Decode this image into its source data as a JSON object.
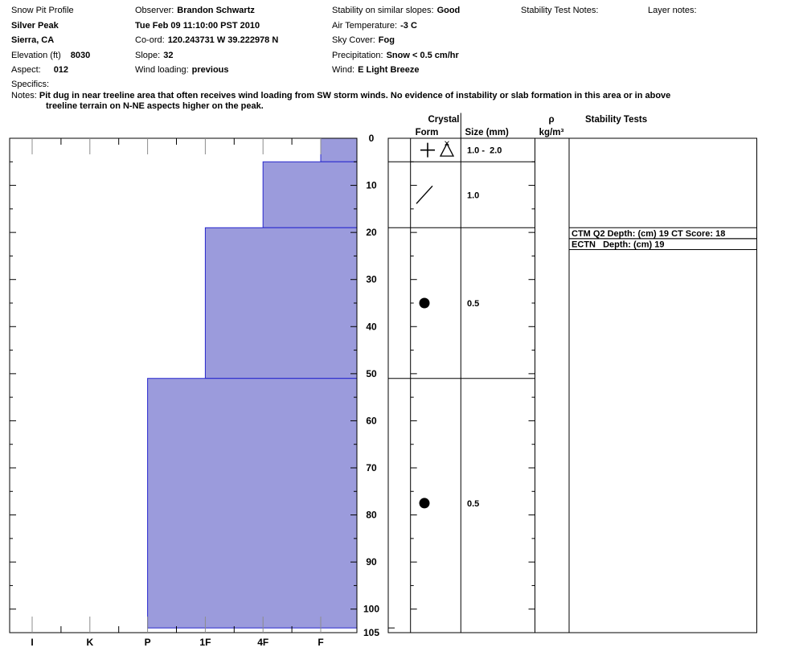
{
  "header": {
    "pit": {
      "title": "Snow Pit Profile",
      "location": "Silver Peak",
      "region": "Sierra, CA",
      "elevation_label": "Elevation (ft)",
      "elevation": "8030",
      "aspect_label": "Aspect:",
      "aspect": "012",
      "specifics_label": "Specifics:",
      "notes_label": "Notes:",
      "notes": "Pit dug in near treeline area that often receives wind loading from SW storm winds. No evidence of instability or slab formation in this area or in above treeline terrain on N-NE aspects higher on the peak."
    },
    "observation": {
      "observer_label": "Observer:",
      "observer": "Brandon Schwartz",
      "datetime": "Tue Feb 09 11:10:00 PST 2010",
      "coord_label": "Co-ord:",
      "coord": "120.243731 W 39.222978 N",
      "slope_label": "Slope:",
      "slope": "32",
      "wind_loading_label": "Wind loading:",
      "wind_loading": "previous"
    },
    "conditions": {
      "stability_label": "Stability on similar slopes:",
      "stability": "Good",
      "air_temp_label": "Air Temperature:",
      "air_temp": "-3 C",
      "sky_label": "Sky Cover:",
      "sky": "Fog",
      "precip_label": "Precipitation:",
      "precip": "Snow < 0.5 cm/hr",
      "wind_label": "Wind:",
      "wind": "E Light Breeze"
    },
    "stability_test_notes_label": "Stability Test Notes:",
    "layer_notes_label": "Layer notes:"
  },
  "chart_data": {
    "type": "bar",
    "title": "Snow hardness profile with depth",
    "orientation": "horizontal",
    "hardness_axis": {
      "categories": [
        "I",
        "K",
        "P",
        "1F",
        "4F",
        "F"
      ]
    },
    "depth_axis": {
      "unit": "cm",
      "min": 0,
      "max": 105,
      "major_ticks": [
        0,
        10,
        20,
        30,
        40,
        50,
        60,
        70,
        80,
        90,
        100,
        105
      ],
      "minor_step": 5
    },
    "column_headers": {
      "crystal": "Crystal",
      "form": "Form",
      "size": "Size (mm)",
      "density_symbol": "ρ",
      "density_unit": "kg/m³",
      "stability": "Stability Tests"
    },
    "layers": [
      {
        "top_cm": 0,
        "bottom_cm": 5,
        "hardness": "F",
        "grain_symbols": [
          "plus",
          "triangle"
        ],
        "grain_names": [
          "precipitation-particles",
          "graupel"
        ],
        "size_mm": "1.0 -  2.0"
      },
      {
        "top_cm": 5,
        "bottom_cm": 19,
        "hardness": "4F",
        "grain_symbols": [
          "slash"
        ],
        "grain_names": [
          "decomposing-fragments"
        ],
        "size_mm": "1.0"
      },
      {
        "top_cm": 19,
        "bottom_cm": 51,
        "hardness": "1F",
        "grain_symbols": [
          "dot"
        ],
        "grain_names": [
          "rounded-grains"
        ],
        "size_mm": "0.5"
      },
      {
        "top_cm": 51,
        "bottom_cm": 104,
        "hardness": "P",
        "grain_symbols": [
          "dot"
        ],
        "grain_names": [
          "rounded-grains"
        ],
        "size_mm": "0.5"
      }
    ],
    "total_depth_cm": 104,
    "stability_tests": [
      {
        "text": "CTM Q2 Depth: (cm) 19 CT Score: 18"
      },
      {
        "text": "ECTN   Depth: (cm) 19"
      }
    ],
    "colors": {
      "bar_fill": "#9b9bdc",
      "bar_stroke": "#2727cd",
      "major_tick_gray": "#8c8c8c",
      "line_black": "#000000"
    }
  }
}
